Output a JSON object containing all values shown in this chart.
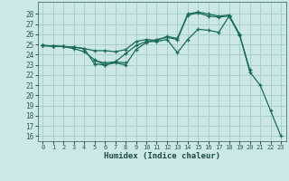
{
  "xlabel": "Humidex (Indice chaleur)",
  "background_color": "#cce8e5",
  "grid_color": "#aacfcc",
  "line_color": "#1a6b5a",
  "xlim": [
    -0.5,
    23.5
  ],
  "ylim": [
    15.5,
    29.2
  ],
  "xticks": [
    0,
    1,
    2,
    3,
    4,
    5,
    6,
    7,
    8,
    9,
    10,
    11,
    12,
    13,
    14,
    15,
    16,
    17,
    18,
    19,
    20,
    21,
    22,
    23
  ],
  "yticks": [
    16,
    17,
    18,
    19,
    20,
    21,
    22,
    23,
    24,
    25,
    26,
    27,
    28
  ],
  "lines": [
    [
      24.9,
      24.85,
      24.8,
      24.75,
      24.6,
      24.4,
      24.4,
      24.3,
      24.5,
      25.3,
      25.5,
      25.4,
      25.8,
      25.6,
      28.0,
      28.2,
      28.0,
      27.8,
      27.9,
      26.0,
      22.3,
      21.0,
      18.5,
      16.0
    ],
    [
      24.9,
      24.85,
      24.8,
      24.75,
      24.6,
      23.1,
      23.0,
      23.2,
      23.0,
      24.5,
      25.2,
      25.5,
      25.7,
      25.5,
      27.9,
      28.1,
      27.8,
      27.7,
      27.8,
      25.9,
      null,
      null,
      null,
      null
    ],
    [
      24.9,
      24.85,
      24.8,
      24.6,
      24.3,
      23.5,
      23.0,
      23.3,
      24.1,
      24.9,
      25.3,
      25.3,
      25.5,
      24.2,
      25.5,
      26.5,
      26.4,
      26.2,
      27.8,
      26.0,
      22.5,
      null,
      null,
      null
    ],
    [
      24.9,
      24.85,
      null,
      null,
      null,
      23.4,
      23.2,
      23.3,
      23.2,
      null,
      null,
      null,
      null,
      null,
      null,
      null,
      null,
      null,
      null,
      null,
      null,
      null,
      null,
      null
    ]
  ]
}
